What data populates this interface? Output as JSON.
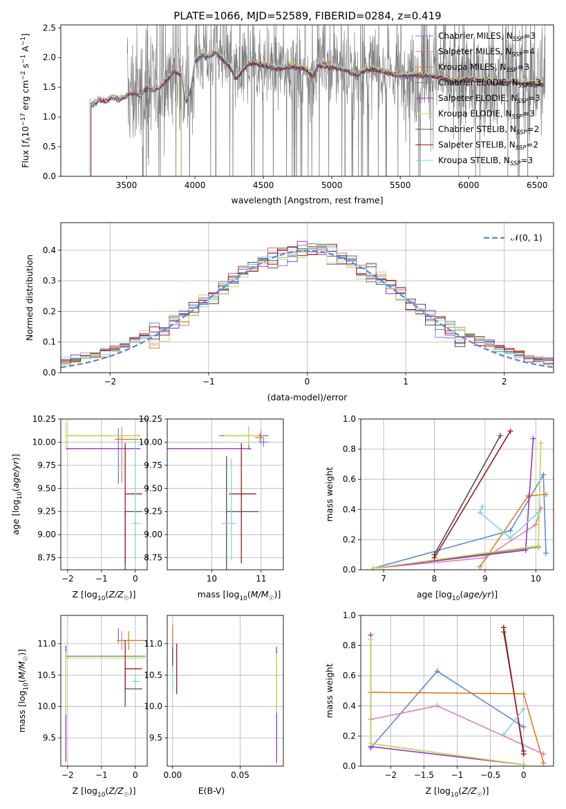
{
  "figure": {
    "title": "PLATE=1066, MJD=52589, FIBERID=0284, z=0.419"
  },
  "colors": {
    "Chabrier MILES": "#5b8bd9",
    "Salpeter MILES": "#e07fb3",
    "Kroupa MILES": "#e07a1c",
    "Chabrier ELODIE": "#7f7f7f",
    "Salpeter ELODIE": "#9932b8",
    "Kroupa ELODIE": "#c6e05a",
    "Chabrier STELIB": "#4d4d4d",
    "Salpeter STELIB": "#a01616",
    "Kroupa STELIB": "#7fd4e0"
  },
  "chart_data": [
    {
      "id": "spectrum",
      "type": "line",
      "title": "PLATE=1066, MJD=52589, FIBERID=0284, z=0.419",
      "xlabel": "wavelength [Angstrom, rest frame]",
      "ylabel": "Flux [fλ10⁻¹⁷ erg cm⁻² s⁻¹ A⁻¹]",
      "xlim": [
        3020,
        6620
      ],
      "ylim": [
        0,
        2.55
      ],
      "xticks": [
        3500,
        4000,
        4500,
        5000,
        5500,
        6000,
        6500
      ],
      "yticks": [
        0.0,
        0.5,
        1.0,
        1.5,
        2.0,
        2.5
      ],
      "grid": false,
      "legend_position": "top-right",
      "legend": [
        {
          "label": "Chabrier MILES, N",
          "sub": "SSP",
          "suffix": "=3"
        },
        {
          "label": "Salpeter MILES, N",
          "sub": "SSP",
          "suffix": "=4"
        },
        {
          "label": "Kroupa MILES, N",
          "sub": "SSP",
          "suffix": "=3"
        },
        {
          "label": "Chabrier ELODIE, N",
          "sub": "SSP",
          "suffix": "=3"
        },
        {
          "label": "Salpeter ELODIE, N",
          "sub": "SSP",
          "suffix": "=3"
        },
        {
          "label": "Kroupa ELODIE, N",
          "sub": "SSP",
          "suffix": "=3"
        },
        {
          "label": "Chabrier STELIB, N",
          "sub": "SSP",
          "suffix": "=2"
        },
        {
          "label": "Salpeter STELIB, N",
          "sub": "SSP",
          "suffix": "=2"
        },
        {
          "label": "Kroupa STELIB, N",
          "sub": "SSP",
          "suffix": "=3"
        }
      ],
      "model_continuum": {
        "x": [
          3230,
          3260,
          3300,
          3350,
          3400,
          3450,
          3500,
          3550,
          3600,
          3650,
          3700,
          3750,
          3800,
          3850,
          3900,
          3934,
          3968,
          4000,
          4050,
          4100,
          4150,
          4200,
          4250,
          4300,
          4350,
          4400,
          4500,
          4600,
          4700,
          4800,
          4861,
          4900,
          5000,
          5100,
          5175,
          5250,
          5300,
          5400,
          5500,
          5600,
          5700,
          5800,
          5890,
          6000,
          6100,
          6200,
          6300,
          6400,
          6500,
          6550
        ],
        "y": [
          1.25,
          1.22,
          1.3,
          1.28,
          1.33,
          1.3,
          1.36,
          1.42,
          1.38,
          1.5,
          1.46,
          1.52,
          1.65,
          1.78,
          1.7,
          1.25,
          1.45,
          1.95,
          2.05,
          2.02,
          2.1,
          1.98,
          1.88,
          1.65,
          1.8,
          1.92,
          1.88,
          1.82,
          1.85,
          1.83,
          1.7,
          1.88,
          1.85,
          1.8,
          1.72,
          1.8,
          1.82,
          1.75,
          1.7,
          1.72,
          1.7,
          1.68,
          1.6,
          1.65,
          1.62,
          1.58,
          1.6,
          1.58,
          1.55,
          1.57
        ]
      },
      "observed_note": "noisy observed spectrum in grey from ~3500 to 6550 A"
    },
    {
      "id": "residuals",
      "type": "line",
      "xlabel": "(data-model)/error",
      "ylabel": "Normed distribution",
      "xlim": [
        -2.5,
        2.5
      ],
      "ylim": [
        0,
        0.49
      ],
      "xticks": [
        -2,
        -1,
        0,
        1,
        2
      ],
      "yticks": [
        0.0,
        0.1,
        0.2,
        0.3,
        0.4
      ],
      "grid": true,
      "legend_position": "top-right",
      "legend": [
        {
          "label": "𝒩(0, 1)"
        }
      ],
      "reference_curve": {
        "name": "𝒩(0, 1)",
        "mean": 0,
        "sigma": 1
      },
      "histogram_bin_width": 0.1
    },
    {
      "id": "age_vs_Z",
      "type": "scatter",
      "xlabel": "Z [log10(Z/Z☉)]",
      "ylabel": "age [log10(age/yr)]",
      "xlim": [
        -2.2,
        0.35
      ],
      "ylim": [
        8.62,
        10.25
      ],
      "xticks": [
        -2,
        -1,
        0
      ],
      "yticks": [
        8.75,
        9.0,
        9.25,
        9.5,
        9.75,
        10.0,
        10.25
      ],
      "grid": true,
      "points": [
        {
          "model": "Chabrier MILES",
          "x": -0.5,
          "xerr": [
            0.0,
            0.0
          ],
          "y": 9.85,
          "yerr": [
            0.3,
            0.3
          ]
        },
        {
          "model": "Salpeter MILES",
          "x": -0.4,
          "xerr": [
            0.0,
            0.0
          ],
          "y": 9.86,
          "yerr": [
            0.3,
            0.3
          ]
        },
        {
          "model": "Kroupa MILES",
          "x": -0.2,
          "xerr": [
            0.4,
            0.3
          ],
          "y": 10.03,
          "yerr": [
            0.0,
            0.0
          ]
        },
        {
          "model": "Chabrier ELODIE",
          "x": -2.05,
          "xerr": [
            0.0,
            2.2
          ],
          "y": 10.07,
          "yerr": [
            0.0,
            0.0
          ]
        },
        {
          "model": "Salpeter ELODIE",
          "x": -2.05,
          "xerr": [
            0.0,
            2.2
          ],
          "y": 9.93,
          "yerr": [
            0.0,
            0.0
          ]
        },
        {
          "model": "Kroupa ELODIE",
          "x": -2.05,
          "xerr": [
            0.0,
            2.2
          ],
          "y": 10.07,
          "yerr": [
            0.15,
            0.15
          ]
        },
        {
          "model": "Chabrier STELIB",
          "x": -0.3,
          "xerr": [
            0.0,
            0.5
          ],
          "y": 9.25,
          "yerr": [
            0.8,
            0.0
          ]
        },
        {
          "model": "Salpeter STELIB",
          "x": -0.3,
          "xerr": [
            0.0,
            0.5
          ],
          "y": 9.44,
          "yerr": [
            0.75,
            0.55
          ]
        },
        {
          "model": "Kroupa STELIB",
          "x": 0.0,
          "xerr": [
            0.1,
            0.15
          ],
          "y": 9.12,
          "yerr": [
            0.4,
            0.9
          ]
        }
      ]
    },
    {
      "id": "age_vs_mass",
      "type": "scatter",
      "xlabel": "mass [log10(M/M☉)]",
      "ylabel": "",
      "xlim": [
        9.1,
        11.45
      ],
      "ylim": [
        8.62,
        10.25
      ],
      "xticks": [
        10,
        11
      ],
      "yticks": [
        8.75,
        9.0,
        9.25,
        9.5,
        9.75,
        10.0,
        10.25
      ],
      "grid": true,
      "points": [
        {
          "model": "Chabrier MILES",
          "x": 11.05,
          "xerr": [
            0.1,
            0.1
          ],
          "y": 10.0,
          "yerr": [
            0.05,
            0.05
          ]
        },
        {
          "model": "Salpeter MILES",
          "x": 11.0,
          "xerr": [
            0.05,
            0.05
          ],
          "y": 10.05,
          "yerr": [
            0.08,
            0.08
          ]
        },
        {
          "model": "Kroupa MILES",
          "x": 10.98,
          "xerr": [
            0.1,
            0.05
          ],
          "y": 10.05,
          "yerr": [
            0.05,
            0.05
          ]
        },
        {
          "model": "Chabrier ELODIE",
          "x": 10.75,
          "xerr": [
            0.6,
            0.4
          ],
          "y": 10.07,
          "yerr": [
            0.15,
            0.1
          ]
        },
        {
          "model": "Salpeter ELODIE",
          "x": 10.8,
          "xerr": [
            1.7,
            0.0
          ],
          "y": 9.93,
          "yerr": [
            0.0,
            0.0
          ]
        },
        {
          "model": "Kroupa ELODIE",
          "x": 10.75,
          "xerr": [
            0.5,
            0.2
          ],
          "y": 10.07,
          "yerr": [
            0.1,
            0.1
          ]
        },
        {
          "model": "Chabrier STELIB",
          "x": 10.3,
          "xerr": [
            0.0,
            0.65
          ],
          "y": 9.25,
          "yerr": [
            0.95,
            0.6
          ]
        },
        {
          "model": "Salpeter STELIB",
          "x": 10.6,
          "xerr": [
            0.25,
            0.3
          ],
          "y": 9.44,
          "yerr": [
            0.75,
            0.55
          ]
        },
        {
          "model": "Kroupa STELIB",
          "x": 10.4,
          "xerr": [
            0.2,
            0.1
          ],
          "y": 9.12,
          "yerr": [
            0.4,
            0.7
          ]
        }
      ]
    },
    {
      "id": "weight_vs_age",
      "type": "line",
      "xlabel": "age [log10(age/yr)]",
      "ylabel": "mass weight",
      "xlim": [
        6.55,
        10.35
      ],
      "ylim": [
        0,
        1.0
      ],
      "xticks": [
        7,
        8,
        9,
        10
      ],
      "yticks": [
        0.0,
        0.2,
        0.4,
        0.6,
        0.8,
        1.0
      ],
      "grid": true,
      "series": [
        {
          "model": "Chabrier MILES",
          "x": [
            6.8,
            9.5,
            10.15,
            10.2
          ],
          "y": [
            0.01,
            0.26,
            0.63,
            0.11
          ]
        },
        {
          "model": "Salpeter MILES",
          "x": [
            6.8,
            9.0,
            10.0,
            10.1
          ],
          "y": [
            0.01,
            0.08,
            0.3,
            0.41
          ]
        },
        {
          "model": "Kroupa MILES",
          "x": [
            8.9,
            9.85,
            10.2
          ],
          "y": [
            0.02,
            0.49,
            0.5
          ]
        },
        {
          "model": "Chabrier ELODIE",
          "x": [
            6.8,
            10.05,
            10.1
          ],
          "y": [
            0.01,
            0.15,
            0.84
          ]
        },
        {
          "model": "Salpeter ELODIE",
          "x": [
            6.8,
            9.8,
            9.95
          ],
          "y": [
            0.01,
            0.13,
            0.87
          ]
        },
        {
          "model": "Kroupa ELODIE",
          "x": [
            6.8,
            10.05,
            10.1
          ],
          "y": [
            0.01,
            0.16,
            0.84
          ]
        },
        {
          "model": "Chabrier STELIB",
          "x": [
            8.0,
            9.3
          ],
          "y": [
            0.1,
            0.89
          ]
        },
        {
          "model": "Salpeter STELIB",
          "x": [
            8.0,
            9.5
          ],
          "y": [
            0.08,
            0.92
          ]
        },
        {
          "model": "Kroupa STELIB",
          "x": [
            8.95,
            8.9,
            9.5,
            10.05
          ],
          "y": [
            0.42,
            0.38,
            0.21,
            0.38
          ]
        }
      ]
    },
    {
      "id": "mass_vs_Z",
      "type": "scatter",
      "xlabel": "Z [log10(Z/Z☉)]",
      "ylabel": "mass [log10(M/M☉)]",
      "xlim": [
        -2.2,
        0.35
      ],
      "ylim": [
        9.05,
        11.45
      ],
      "xticks": [
        -2,
        -1,
        0
      ],
      "yticks": [
        9.5,
        10.0,
        10.5,
        11.0
      ],
      "grid": true,
      "points": [
        {
          "model": "Chabrier MILES",
          "x": -0.5,
          "xerr": [
            0.0,
            0.0
          ],
          "y": 11.15,
          "yerr": [
            0.15,
            0.1
          ]
        },
        {
          "model": "Salpeter MILES",
          "x": -0.4,
          "xerr": [
            0.0,
            0.0
          ],
          "y": 11.05,
          "yerr": [
            0.15,
            0.15
          ]
        },
        {
          "model": "Kroupa MILES",
          "x": -0.2,
          "xerr": [
            0.35,
            0.5
          ],
          "y": 11.05,
          "yerr": [
            0.15,
            0.15
          ]
        },
        {
          "model": "Chabrier ELODIE",
          "x": -2.05,
          "xerr": [
            0.0,
            2.35
          ],
          "y": 10.8,
          "yerr": [
            0.1,
            0.1
          ]
        },
        {
          "model": "Salpeter ELODIE",
          "x": -2.05,
          "xerr": [
            0.0,
            0.0
          ],
          "y": 10.77,
          "yerr": [
            1.65,
            0.2
          ]
        },
        {
          "model": "Kroupa ELODIE",
          "x": -2.05,
          "xerr": [
            0.0,
            2.35
          ],
          "y": 10.77,
          "yerr": [
            0.9,
            0.1
          ]
        },
        {
          "model": "Chabrier STELIB",
          "x": -0.3,
          "xerr": [
            0.0,
            0.5
          ],
          "y": 10.28,
          "yerr": [
            0.28,
            0.32
          ]
        },
        {
          "model": "Salpeter STELIB",
          "x": -0.3,
          "xerr": [
            0.0,
            0.5
          ],
          "y": 10.6,
          "yerr": [
            0.35,
            0.45
          ]
        },
        {
          "model": "Kroupa STELIB",
          "x": 0.0,
          "xerr": [
            0.1,
            0.15
          ],
          "y": 10.4,
          "yerr": [
            0.1,
            0.1
          ]
        }
      ]
    },
    {
      "id": "mass_vs_EBV",
      "type": "scatter",
      "xlabel": "E(B-V)",
      "ylabel": "",
      "xlim": [
        -0.004,
        0.082
      ],
      "ylim": [
        9.05,
        11.45
      ],
      "xticks": [
        0.0,
        0.05
      ],
      "xtick_labels": [
        "0.00",
        "0.05"
      ],
      "yticks": [
        9.5,
        10.0,
        10.5,
        11.0
      ],
      "grid": true,
      "points": [
        {
          "model": "Chabrier MILES",
          "x": 0.0,
          "y": 10.95,
          "yerr": [
            0.15,
            0.15
          ]
        },
        {
          "model": "Salpeter MILES",
          "x": 0.0,
          "y": 10.8,
          "yerr": [
            0.2,
            0.2
          ]
        },
        {
          "model": "Kroupa MILES",
          "x": 0.0,
          "y": 11.0,
          "yerr": [
            0.3,
            0.3
          ]
        },
        {
          "model": "Chabrier ELODIE",
          "x": 0.077,
          "y": 10.8,
          "yerr": [
            0.1,
            0.1
          ]
        },
        {
          "model": "Salpeter ELODIE",
          "x": 0.077,
          "y": 10.3,
          "yerr": [
            1.2,
            0.65
          ]
        },
        {
          "model": "Kroupa ELODIE",
          "x": 0.077,
          "y": 10.4,
          "yerr": [
            0.5,
            0.45
          ]
        },
        {
          "model": "Chabrier STELIB",
          "x": 0.0,
          "y": 10.75,
          "yerr": [
            0.2,
            0.2
          ]
        },
        {
          "model": "Salpeter STELIB",
          "x": 0.003,
          "y": 10.6,
          "yerr": [
            0.4,
            0.4
          ]
        },
        {
          "model": "Kroupa STELIB",
          "x": 0.0,
          "y": 10.45,
          "yerr": [
            0.2,
            0.2
          ]
        }
      ]
    },
    {
      "id": "weight_vs_Z",
      "type": "line",
      "xlabel": "Z [log10(Z/Z☉)]",
      "ylabel": "mass weight",
      "xlim": [
        -2.45,
        0.45
      ],
      "ylim": [
        0,
        1.0
      ],
      "xticks": [
        -2.0,
        -1.5,
        -1.0,
        -0.5,
        0.0
      ],
      "yticks": [
        0.0,
        0.2,
        0.4,
        0.6,
        0.8,
        1.0
      ],
      "grid": true,
      "series": [
        {
          "model": "Chabrier MILES",
          "x": [
            -2.3,
            -1.3,
            0.0
          ],
          "y": [
            0.12,
            0.63,
            0.26
          ]
        },
        {
          "model": "Salpeter MILES",
          "x": [
            -2.3,
            -1.3,
            0.3
          ],
          "y": [
            0.31,
            0.4,
            0.08
          ]
        },
        {
          "model": "Kroupa MILES",
          "x": [
            -2.3,
            0.0,
            0.3
          ],
          "y": [
            0.49,
            0.48,
            0.02
          ]
        },
        {
          "model": "Chabrier ELODIE",
          "x": [
            -2.3,
            -2.3,
            0.0
          ],
          "y": [
            0.84,
            0.15,
            0.01
          ]
        },
        {
          "model": "Salpeter ELODIE",
          "x": [
            -2.3,
            -2.3,
            0.0
          ],
          "y": [
            0.87,
            0.13,
            0.01
          ]
        },
        {
          "model": "Kroupa ELODIE",
          "x": [
            -2.3,
            -2.3,
            0.0
          ],
          "y": [
            0.84,
            0.15,
            0.01
          ]
        },
        {
          "model": "Chabrier STELIB",
          "x": [
            -0.3,
            0.0
          ],
          "y": [
            0.89,
            0.1
          ]
        },
        {
          "model": "Salpeter STELIB",
          "x": [
            -0.3,
            0.0
          ],
          "y": [
            0.92,
            0.08
          ]
        },
        {
          "model": "Kroupa STELIB",
          "x": [
            -0.3,
            0.0
          ],
          "y": [
            0.21,
            0.38
          ]
        }
      ]
    }
  ]
}
